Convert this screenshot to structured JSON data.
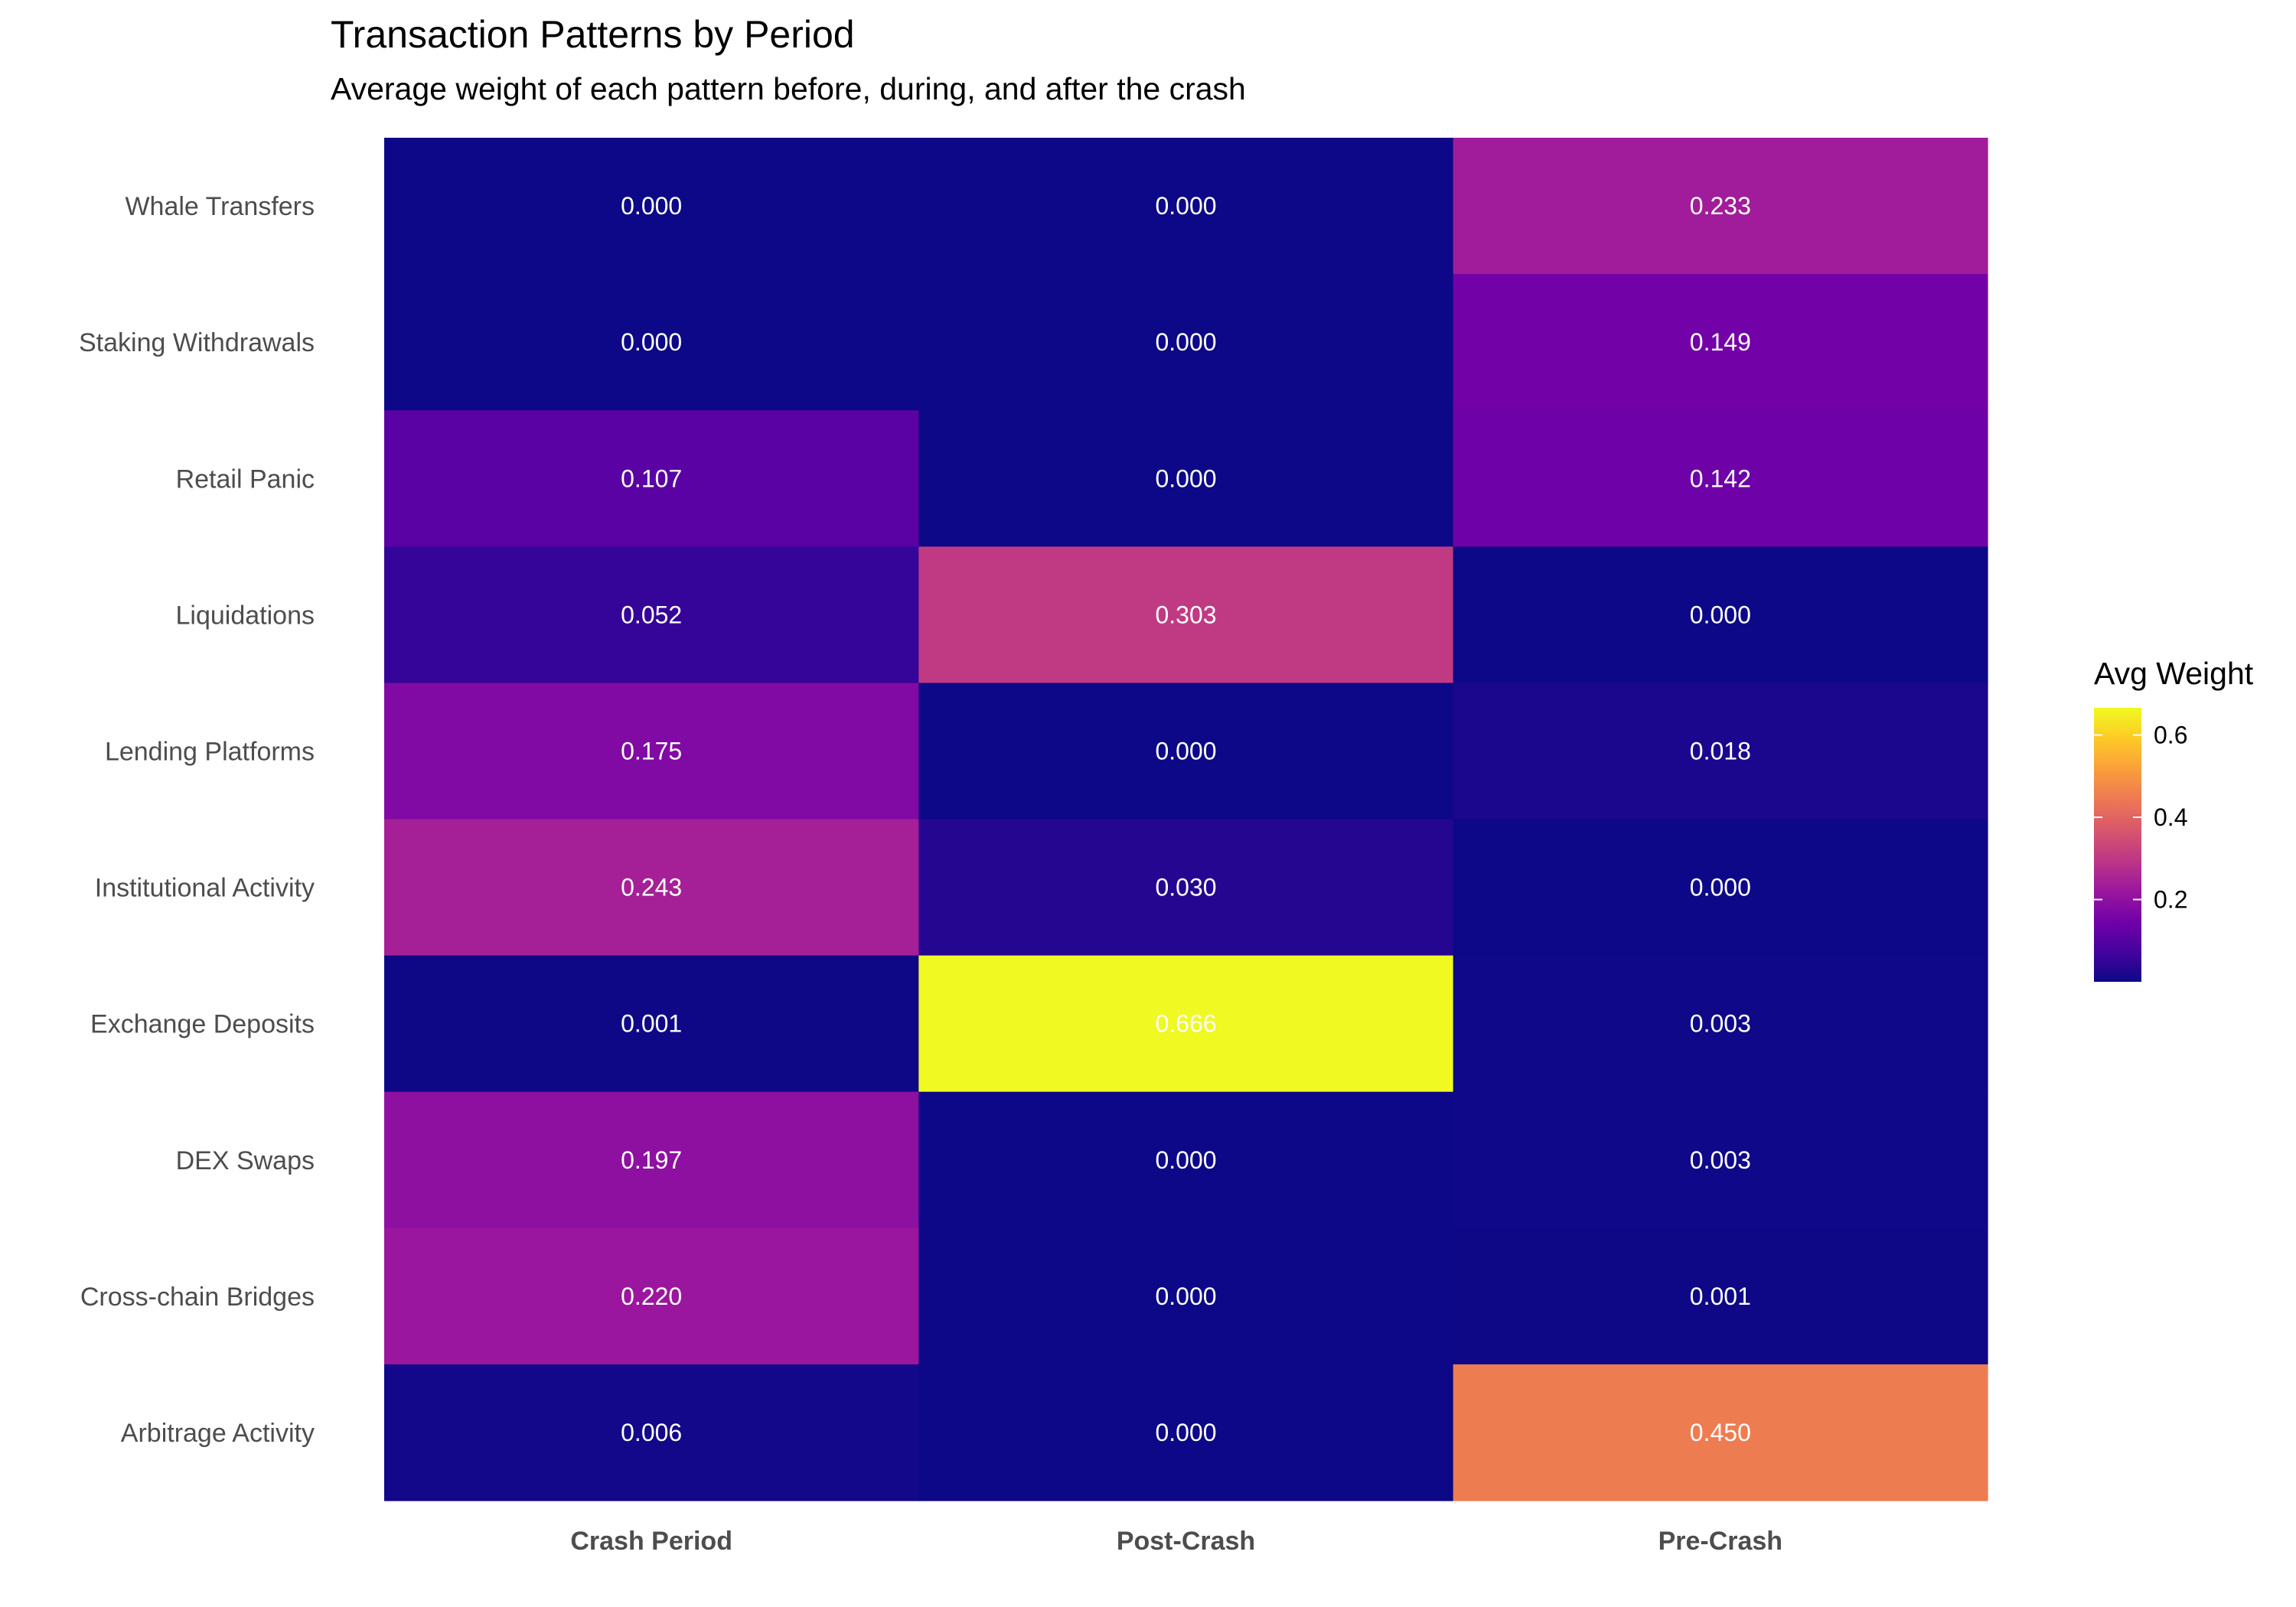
{
  "chart_data": {
    "type": "heatmap",
    "title": "Transaction Patterns by Period",
    "subtitle": "Average weight of each pattern before, during, and after the crash",
    "xlabel": "",
    "ylabel": "",
    "x_categories": [
      "Crash Period",
      "Post-Crash",
      "Pre-Crash"
    ],
    "y_categories": [
      "Whale Transfers",
      "Staking Withdrawals",
      "Retail Panic",
      "Liquidations",
      "Lending Platforms",
      "Institutional Activity",
      "Exchange Deposits",
      "DEX Swaps",
      "Cross-chain Bridges",
      "Arbitrage Activity"
    ],
    "values": [
      [
        0.0,
        0.0,
        0.233
      ],
      [
        0.0,
        0.0,
        0.149
      ],
      [
        0.107,
        0.0,
        0.142
      ],
      [
        0.052,
        0.303,
        0.0
      ],
      [
        0.175,
        0.0,
        0.018
      ],
      [
        0.243,
        0.03,
        0.0
      ],
      [
        0.001,
        0.666,
        0.003
      ],
      [
        0.197,
        0.0,
        0.003
      ],
      [
        0.22,
        0.0,
        0.001
      ],
      [
        0.006,
        0.0,
        0.45
      ]
    ],
    "value_labels": [
      [
        "0.000",
        "0.000",
        "0.233"
      ],
      [
        "0.000",
        "0.000",
        "0.149"
      ],
      [
        "0.107",
        "0.000",
        "0.142"
      ],
      [
        "0.052",
        "0.303",
        "0.000"
      ],
      [
        "0.175",
        "0.000",
        "0.018"
      ],
      [
        "0.243",
        "0.030",
        "0.000"
      ],
      [
        "0.001",
        "0.666",
        "0.003"
      ],
      [
        "0.197",
        "0.000",
        "0.003"
      ],
      [
        "0.220",
        "0.000",
        "0.001"
      ],
      [
        "0.006",
        "0.000",
        "0.450"
      ]
    ],
    "color_scale": {
      "name": "plasma",
      "min": 0,
      "max": 0.666,
      "stops": [
        "#0d0887",
        "#46039f",
        "#7201a8",
        "#9c179e",
        "#bd3786",
        "#d8576b",
        "#ed7953",
        "#fb9f3a",
        "#fdca26",
        "#f0f921"
      ]
    },
    "legend": {
      "title": "Avg Weight",
      "ticks": [
        0.2,
        0.4,
        0.6
      ],
      "tick_labels": [
        "0.2",
        "0.4",
        "0.6"
      ],
      "position": "right"
    }
  }
}
